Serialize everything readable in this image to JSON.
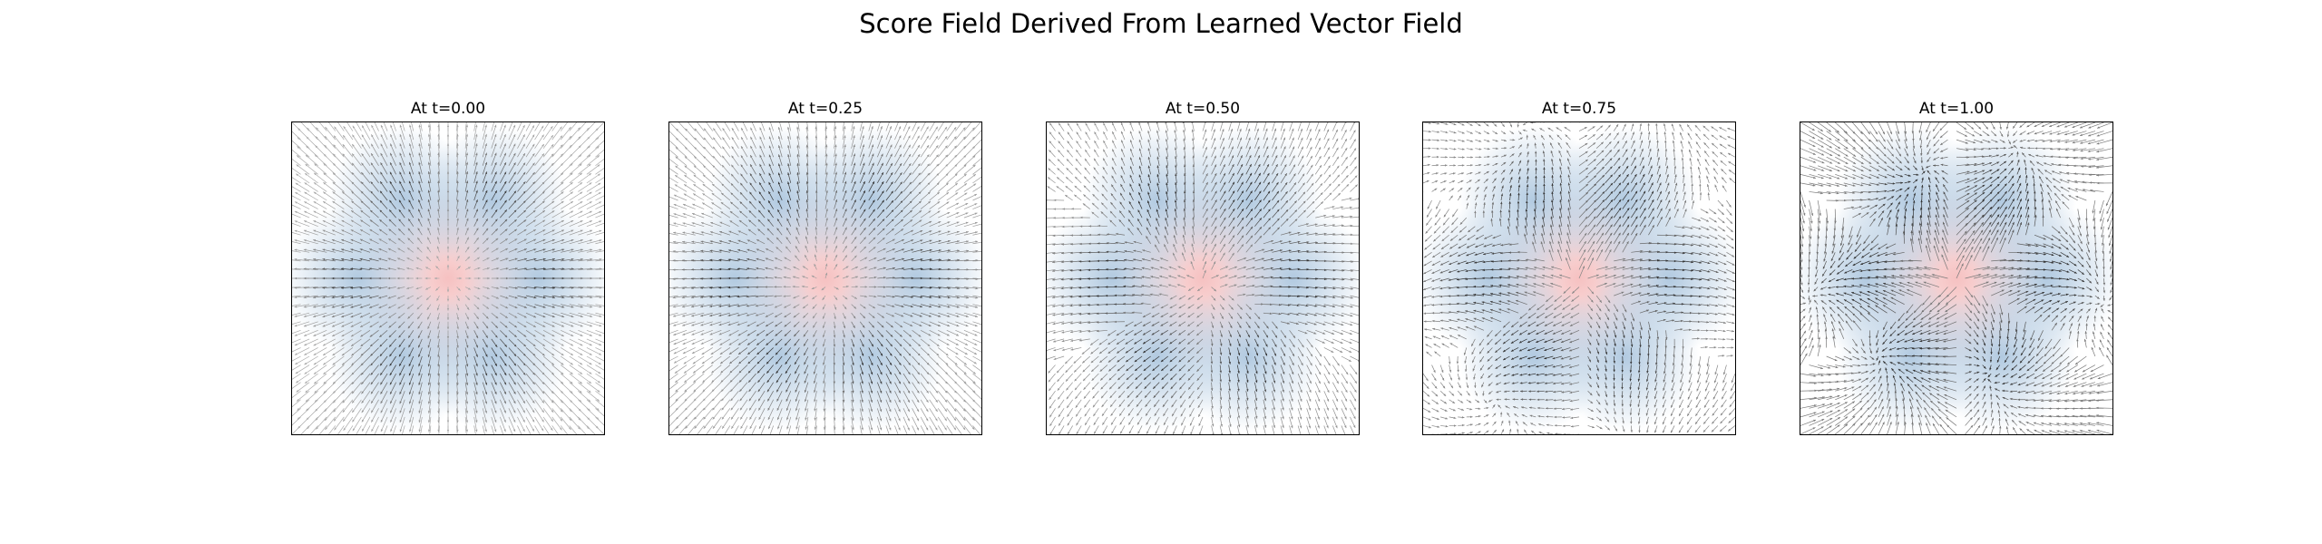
{
  "figure": {
    "suptitle": "Score Field Derived From Learned Vector Field"
  },
  "chart_data": {
    "type": "quiver",
    "title": "Score Field Derived From Learned Vector Field",
    "xlim": [
      -1,
      1
    ],
    "ylim": [
      -1,
      1
    ],
    "axes_ticks": "off",
    "grid": false,
    "colors": {
      "source_blob": "#f4b6b6",
      "target_blob": "#a9c4dd",
      "arrow_near": "#2b2b2b",
      "arrow_far": "#a9a9a9",
      "frame": "#000000"
    },
    "source_distribution": {
      "center": [
        0,
        0
      ],
      "std": 0.18
    },
    "target_distribution": {
      "centers": [
        [
          0.58,
          0
        ],
        [
          0.29,
          0.5
        ],
        [
          -0.29,
          0.5
        ],
        [
          -0.58,
          0
        ],
        [
          -0.29,
          -0.5
        ],
        [
          0.29,
          -0.5
        ]
      ],
      "std": 0.15
    },
    "panels": [
      {
        "title": "At t=0.00",
        "t": 0.0
      },
      {
        "title": "At t=0.25",
        "t": 0.25
      },
      {
        "title": "At t=0.50",
        "t": 0.5
      },
      {
        "title": "At t=0.75",
        "t": 0.75
      },
      {
        "title": "At t=1.00",
        "t": 1.0
      }
    ]
  }
}
